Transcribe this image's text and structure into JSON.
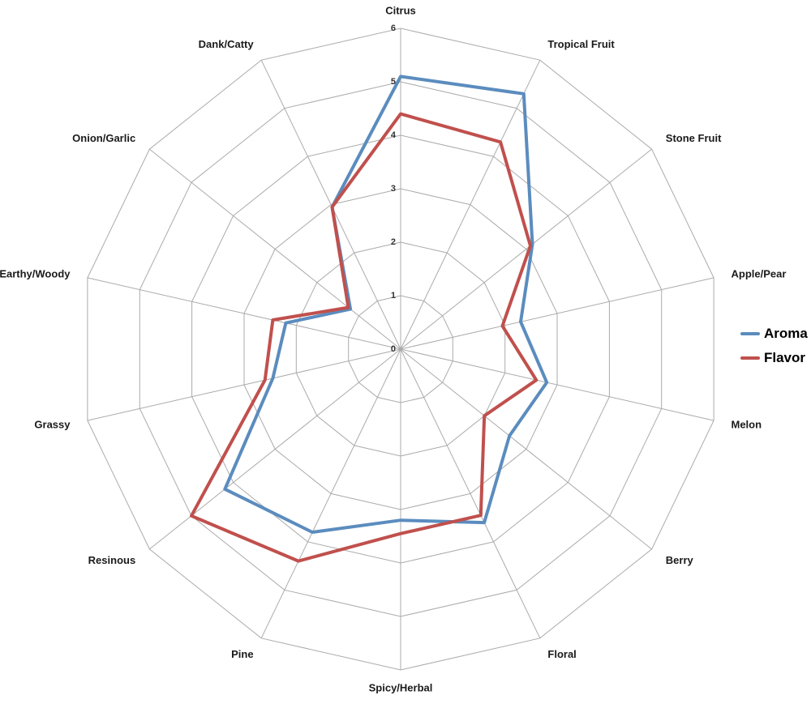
{
  "chart_data": {
    "type": "line",
    "coordinate_system": "polar-radar",
    "title": "",
    "categories": [
      "Citrus",
      "Tropical Fruit",
      "Stone Fruit",
      "Apple/Pear",
      "Melon",
      "Berry",
      "Floral",
      "Spicy/Herbal",
      "Pine",
      "Resinous",
      "Grassy",
      "Earthy/Woody",
      "Onion/Garlic",
      "Dank/Catty"
    ],
    "series": [
      {
        "name": "Aroma",
        "color": "#5B8CBE",
        "values": [
          5.1,
          5.3,
          3.15,
          2.3,
          2.8,
          2.6,
          3.6,
          3.2,
          3.8,
          4.2,
          2.45,
          2.2,
          1.2,
          2.95
        ]
      },
      {
        "name": "Flavor",
        "color": "#C0504D",
        "values": [
          4.4,
          4.3,
          3.1,
          1.95,
          2.6,
          2.0,
          3.45,
          3.45,
          4.4,
          5.0,
          2.6,
          2.45,
          1.25,
          2.95
        ]
      }
    ],
    "radial_axis": {
      "min": 0,
      "max": 6,
      "tick_interval": 1,
      "tick_labels": [
        "0",
        "1",
        "2",
        "3",
        "4",
        "5",
        "6"
      ]
    },
    "grid": true,
    "legend_position": "right"
  },
  "legend": {
    "items": [
      {
        "label": "Aroma",
        "color": "#5B8CBE"
      },
      {
        "label": "Flavor",
        "color": "#C0504D"
      }
    ]
  },
  "styles": {
    "background": "#ffffff",
    "grid_color": "#ABABAB",
    "axis_label_color": "#1a1a1a",
    "tick_label_color": "#333333"
  }
}
